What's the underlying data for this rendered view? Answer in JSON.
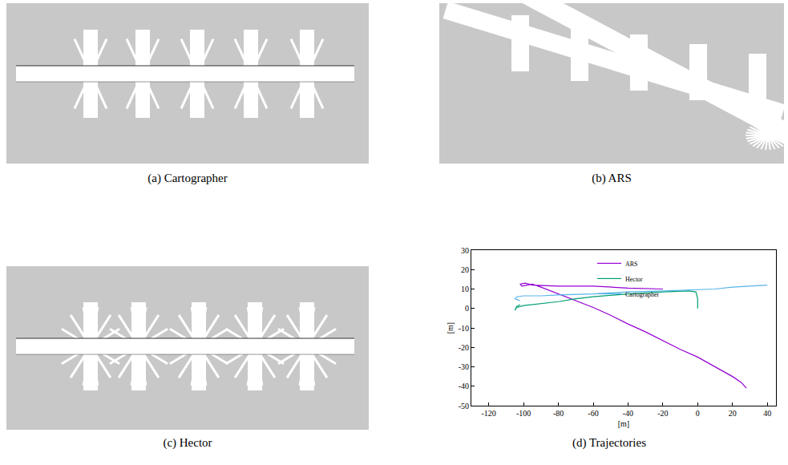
{
  "panels": [
    {
      "caption": "(a) Cartographer"
    },
    {
      "caption": "(b) ARS"
    },
    {
      "caption": "(c) Hector"
    }
  ],
  "chart_data": {
    "type": "line",
    "caption": "(d) Trajectories",
    "xlabel": "[m]",
    "ylabel": "[m]",
    "xlim": [
      -130,
      45
    ],
    "ylim": [
      -50,
      30
    ],
    "xticks": [
      -120,
      -100,
      -80,
      -60,
      -40,
      -20,
      0,
      20,
      40
    ],
    "yticks": [
      -50,
      -40,
      -30,
      -20,
      -10,
      0,
      10,
      20,
      30
    ],
    "legend": "top",
    "series": [
      {
        "name": "ARS",
        "color": "#9400d3",
        "x": [
          -20,
          -40,
          -60,
          -80,
          -95,
          -99,
          -102,
          -101,
          -98,
          -95,
          -90,
          -80,
          -70,
          -60,
          -50,
          -40,
          -30,
          -20,
          -10,
          0,
          10,
          20,
          25,
          28
        ],
        "y": [
          10,
          10.5,
          11.5,
          11.5,
          12,
          13,
          12.5,
          11.5,
          12,
          12.5,
          11,
          7.5,
          4,
          0.5,
          -3.5,
          -8,
          -12,
          -16.5,
          -21,
          -25,
          -30,
          -35,
          -38,
          -41
        ]
      },
      {
        "name": "Hector",
        "color": "#009e73",
        "x": [
          0,
          0,
          -1,
          -5,
          -20,
          -40,
          -60,
          -70,
          -80,
          -90,
          -100,
          -104,
          -105,
          -104,
          -102
        ],
        "y": [
          0,
          5,
          8.5,
          9,
          8.5,
          7.5,
          6,
          5,
          3.5,
          2.5,
          1.5,
          0.5,
          -1,
          1,
          2
        ]
      },
      {
        "name": "Cartographer",
        "color": "#56b4e9",
        "x": [
          -102,
          -105,
          -104,
          -100,
          -90,
          -80,
          -60,
          -40,
          -20,
          0,
          10,
          20,
          30,
          40
        ],
        "y": [
          4,
          5,
          6,
          6.5,
          6.5,
          7,
          7.5,
          8.5,
          9,
          9.5,
          10,
          11,
          11.5,
          12
        ]
      }
    ]
  }
}
